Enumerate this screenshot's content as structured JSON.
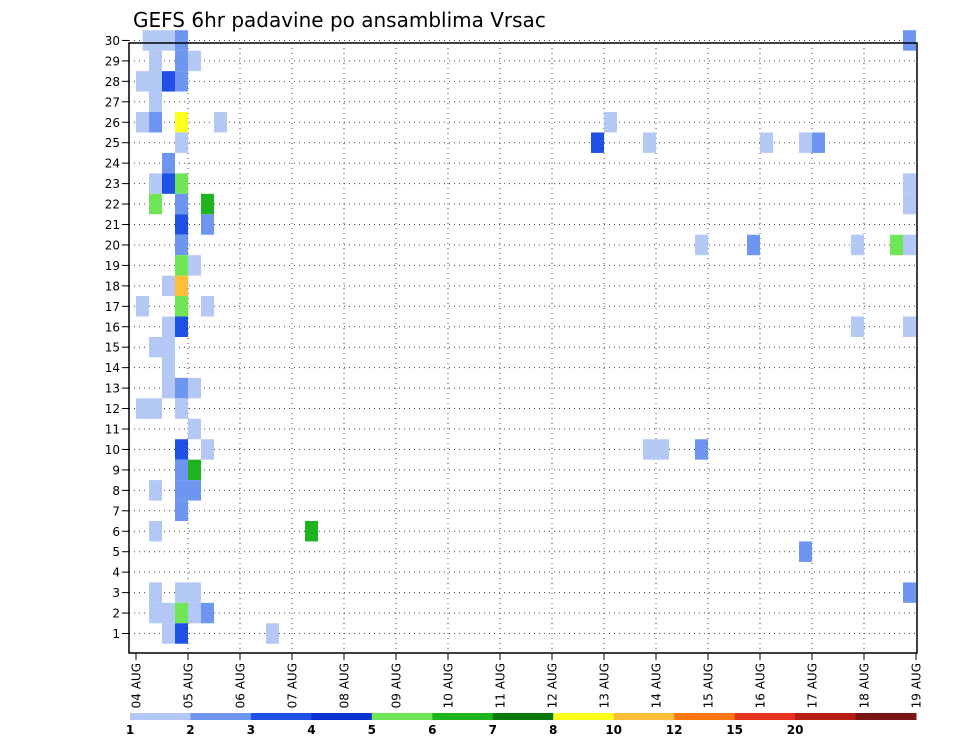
{
  "chart_data": {
    "type": "heatmap",
    "title": "GEFS 6hr padavine po ansamblima Vrsac",
    "x_tick_labels": [
      "04 AUG",
      "05 AUG",
      "06 AUG",
      "07 AUG",
      "08 AUG",
      "09 AUG",
      "10 AUG",
      "11 AUG",
      "12 AUG",
      "13 AUG",
      "14 AUG",
      "15 AUG",
      "16 AUG",
      "17 AUG",
      "18 AUG",
      "19 AUG"
    ],
    "y_tick_labels": [
      "1",
      "2",
      "3",
      "4",
      "5",
      "6",
      "7",
      "8",
      "9",
      "10",
      "11",
      "12",
      "13",
      "14",
      "15",
      "16",
      "17",
      "18",
      "19",
      "20",
      "21",
      "22",
      "23",
      "24",
      "25",
      "26",
      "27",
      "28",
      "29",
      "30"
    ],
    "x_range": [
      0,
      15
    ],
    "y_range": [
      1,
      30
    ],
    "grid": true,
    "colorbar": {
      "levels": [
        "1",
        "2",
        "3",
        "4",
        "5",
        "6",
        "7",
        "8",
        "10",
        "12",
        "15",
        "20"
      ],
      "colors": [
        "#b4c8f5",
        "#6e96f0",
        "#1e50e6",
        "#0a32d2",
        "#6ee655",
        "#1eb41e",
        "#0a780a",
        "#ffff1e",
        "#ffbe37",
        "#ff7814",
        "#e6321e",
        "#b41e14",
        "#781414"
      ]
    },
    "cells_note": "value = colorbar class index; x in days since first tick",
    "cells": [
      [
        0.25,
        30,
        0
      ],
      [
        0.5,
        30,
        0
      ],
      [
        0.75,
        30,
        0
      ],
      [
        0.875,
        30,
        1
      ],
      [
        14.875,
        30,
        1
      ],
      [
        0.375,
        29,
        0
      ],
      [
        0.875,
        29,
        1
      ],
      [
        1.125,
        29,
        0
      ],
      [
        0.125,
        28,
        0
      ],
      [
        0.375,
        28,
        0
      ],
      [
        0.625,
        28,
        2
      ],
      [
        0.875,
        28,
        1
      ],
      [
        0.375,
        27,
        0
      ],
      [
        0.125,
        26,
        0
      ],
      [
        0.375,
        26,
        1
      ],
      [
        0.875,
        26,
        7
      ],
      [
        1.625,
        26,
        0
      ],
      [
        9.125,
        26,
        0
      ],
      [
        0.875,
        25,
        0
      ],
      [
        8.875,
        25,
        2
      ],
      [
        9.875,
        25,
        0
      ],
      [
        12.125,
        25,
        0
      ],
      [
        12.875,
        25,
        0
      ],
      [
        13.125,
        25,
        1
      ],
      [
        0.625,
        24,
        1
      ],
      [
        0.375,
        23,
        0
      ],
      [
        0.625,
        23,
        2
      ],
      [
        0.875,
        23,
        4
      ],
      [
        14.875,
        23,
        0
      ],
      [
        0.375,
        22,
        4
      ],
      [
        0.875,
        22,
        1
      ],
      [
        1.375,
        22,
        5
      ],
      [
        14.875,
        22,
        0
      ],
      [
        0.875,
        21,
        2
      ],
      [
        1.375,
        21,
        1
      ],
      [
        0.875,
        20,
        1
      ],
      [
        10.875,
        20,
        0
      ],
      [
        11.875,
        20,
        1
      ],
      [
        13.875,
        20,
        0
      ],
      [
        14.625,
        20,
        4
      ],
      [
        14.875,
        20,
        0
      ],
      [
        0.875,
        19,
        4
      ],
      [
        1.125,
        19,
        0
      ],
      [
        0.625,
        18,
        0
      ],
      [
        0.875,
        18,
        8
      ],
      [
        0.125,
        17,
        0
      ],
      [
        0.875,
        17,
        4
      ],
      [
        1.375,
        17,
        0
      ],
      [
        0.625,
        16,
        0
      ],
      [
        0.875,
        16,
        2
      ],
      [
        13.875,
        16,
        0
      ],
      [
        14.875,
        16,
        0
      ],
      [
        0.375,
        15,
        0
      ],
      [
        0.625,
        15,
        0
      ],
      [
        0.625,
        14,
        0
      ],
      [
        0.625,
        13,
        0
      ],
      [
        0.875,
        13,
        1
      ],
      [
        1.125,
        13,
        0
      ],
      [
        0.125,
        12,
        0
      ],
      [
        0.375,
        12,
        0
      ],
      [
        0.875,
        12,
        0
      ],
      [
        1.125,
        11,
        0
      ],
      [
        0.875,
        10,
        2
      ],
      [
        1.375,
        10,
        0
      ],
      [
        9.875,
        10,
        0
      ],
      [
        10.125,
        10,
        0
      ],
      [
        10.875,
        10,
        1
      ],
      [
        0.875,
        9,
        1
      ],
      [
        1.125,
        9,
        5
      ],
      [
        0.375,
        8,
        0
      ],
      [
        0.875,
        8,
        1
      ],
      [
        1.125,
        8,
        1
      ],
      [
        0.875,
        7,
        1
      ],
      [
        0.375,
        6,
        0
      ],
      [
        3.375,
        6,
        5
      ],
      [
        12.875,
        5,
        1
      ],
      [
        0.375,
        3,
        0
      ],
      [
        0.875,
        3,
        0
      ],
      [
        1.125,
        3,
        0
      ],
      [
        14.875,
        3,
        1
      ],
      [
        0.375,
        2,
        0
      ],
      [
        0.625,
        2,
        0
      ],
      [
        0.875,
        2,
        4
      ],
      [
        1.125,
        2,
        0
      ],
      [
        1.375,
        2,
        1
      ],
      [
        0.625,
        1,
        0
      ],
      [
        0.875,
        1,
        2
      ],
      [
        2.625,
        1,
        0
      ]
    ]
  }
}
